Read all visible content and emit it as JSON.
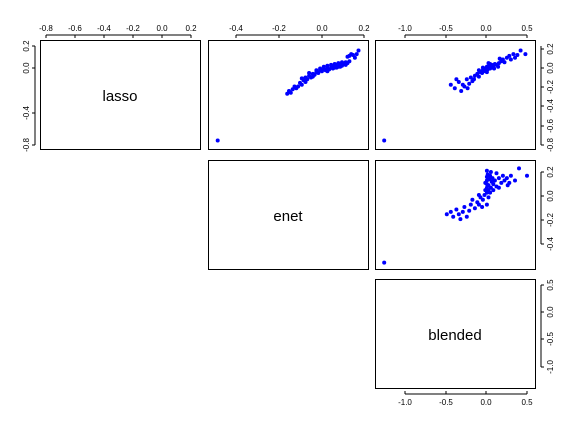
{
  "chart_data": {
    "type": "scatter",
    "layout": "pairs",
    "variables": [
      "lasso",
      "enet",
      "blended"
    ],
    "point_color": "#0000ff",
    "axes": {
      "lasso": {
        "range": [
          -0.85,
          0.25
        ],
        "ticks": [
          -0.8,
          -0.6,
          -0.4,
          -0.2,
          0.0,
          0.2
        ],
        "tick_labels": [
          "-0.8",
          "-0.6",
          "-0.4",
          "-0.2",
          "0.0",
          "0.2"
        ]
      },
      "enet": {
        "range": [
          -0.62,
          0.2
        ],
        "ticks": [
          -0.4,
          -0.2,
          0.0,
          0.2
        ],
        "tick_labels": [
          "-0.4",
          "-0.2",
          "0.0",
          "0.2"
        ]
      },
      "blended": {
        "range": [
          -1.32,
          0.55
        ],
        "ticks": [
          -1.0,
          -0.5,
          0.0,
          0.5
        ],
        "tick_labels": [
          "-1.0",
          "-0.5",
          "0.0",
          "0.5"
        ]
      }
    },
    "tick_label_rows": {
      "top_lasso": [
        "-0.8",
        "-0.6",
        "-0.4",
        "-0.2",
        "0.0",
        "0.2"
      ],
      "top_enet": [
        "-0.4",
        "-0.2",
        "0.0",
        "0.2"
      ],
      "top_blended": [
        "-1.0",
        "-0.5",
        "0.0",
        "0.5"
      ],
      "bottom_blended": [
        "-1.0",
        "-0.5",
        "0.0",
        "0.5"
      ]
    },
    "tick_label_cols": {
      "left_lasso": [
        "-0.8",
        "-0.4",
        "0.0",
        "0.2"
      ],
      "right_lasso": [
        "-0.8",
        "-0.6",
        "-0.4",
        "-0.2",
        "0.0",
        "0.2"
      ],
      "right_enet": [
        "-0.4",
        "-0.2",
        "0.0",
        "0.2"
      ],
      "right_blended": [
        "-1.0",
        "-0.5",
        "0.0",
        "0.5"
      ]
    },
    "panels": [
      {
        "x": "enet",
        "y": "lasso",
        "points": [
          [
            -0.6,
            -0.8
          ],
          [
            -0.22,
            -0.28
          ],
          [
            -0.21,
            -0.25
          ],
          [
            -0.2,
            -0.27
          ],
          [
            -0.19,
            -0.23
          ],
          [
            -0.18,
            -0.2
          ],
          [
            -0.17,
            -0.22
          ],
          [
            -0.16,
            -0.2
          ],
          [
            -0.15,
            -0.16
          ],
          [
            -0.14,
            -0.18
          ],
          [
            -0.13,
            -0.13
          ],
          [
            -0.12,
            -0.15
          ],
          [
            -0.12,
            -0.1
          ],
          [
            -0.11,
            -0.12
          ],
          [
            -0.1,
            -0.08
          ],
          [
            -0.09,
            -0.1
          ],
          [
            -0.08,
            -0.06
          ],
          [
            -0.07,
            -0.07
          ],
          [
            -0.06,
            -0.04
          ],
          [
            -0.05,
            -0.05
          ],
          [
            -0.04,
            -0.02
          ],
          [
            -0.03,
            -0.03
          ],
          [
            -0.02,
            -0.01
          ],
          [
            -0.01,
            -0.02
          ],
          [
            0.0,
            0.0
          ],
          [
            0.01,
            -0.01
          ],
          [
            0.02,
            0.01
          ],
          [
            0.03,
            0.0
          ],
          [
            0.03,
            0.02
          ],
          [
            0.04,
            0.01
          ],
          [
            0.05,
            0.03
          ],
          [
            0.05,
            0.01
          ],
          [
            0.06,
            0.02
          ],
          [
            0.07,
            0.04
          ],
          [
            0.07,
            0.02
          ],
          [
            0.08,
            0.03
          ],
          [
            0.09,
            0.05
          ],
          [
            0.1,
            0.04
          ],
          [
            0.1,
            0.07
          ],
          [
            0.11,
            0.06
          ],
          [
            0.12,
            0.08
          ],
          [
            0.12,
            0.14
          ],
          [
            0.13,
            0.16
          ],
          [
            0.14,
            0.15
          ],
          [
            0.15,
            0.12
          ],
          [
            0.16,
            0.16
          ],
          [
            0.11,
            0.13
          ],
          [
            0.17,
            0.2
          ],
          [
            -0.02,
            0.02
          ],
          [
            0.0,
            0.03
          ],
          [
            0.02,
            0.04
          ],
          [
            0.04,
            0.05
          ],
          [
            -0.04,
            0.0
          ],
          [
            -0.06,
            -0.02
          ],
          [
            0.06,
            0.06
          ],
          [
            0.08,
            0.07
          ],
          [
            -0.1,
            -0.05
          ],
          [
            -0.14,
            -0.11
          ],
          [
            -0.08,
            -0.09
          ],
          [
            0.0,
            -0.03
          ]
        ]
      },
      {
        "x": "blended",
        "y": "lasso",
        "points": [
          [
            -1.28,
            -0.8
          ],
          [
            -0.45,
            -0.18
          ],
          [
            -0.4,
            -0.22
          ],
          [
            -0.35,
            -0.15
          ],
          [
            -0.32,
            -0.25
          ],
          [
            -0.28,
            -0.2
          ],
          [
            -0.25,
            -0.12
          ],
          [
            -0.22,
            -0.17
          ],
          [
            -0.2,
            -0.1
          ],
          [
            -0.18,
            -0.14
          ],
          [
            -0.15,
            -0.08
          ],
          [
            -0.12,
            -0.06
          ],
          [
            -0.1,
            -0.09
          ],
          [
            -0.08,
            -0.04
          ],
          [
            -0.06,
            -0.05
          ],
          [
            -0.05,
            -0.02
          ],
          [
            -0.03,
            0.0
          ],
          [
            -0.02,
            -0.03
          ],
          [
            0.0,
            0.0
          ],
          [
            0.0,
            0.02
          ],
          [
            0.01,
            -0.01
          ],
          [
            0.02,
            0.01
          ],
          [
            0.03,
            0.03
          ],
          [
            0.04,
            0.0
          ],
          [
            0.05,
            0.02
          ],
          [
            0.06,
            0.04
          ],
          [
            0.07,
            0.01
          ],
          [
            0.08,
            0.03
          ],
          [
            0.1,
            0.05
          ],
          [
            0.12,
            0.04
          ],
          [
            0.15,
            0.06
          ],
          [
            0.18,
            0.08
          ],
          [
            0.2,
            0.1
          ],
          [
            0.22,
            0.07
          ],
          [
            0.25,
            0.12
          ],
          [
            0.28,
            0.14
          ],
          [
            0.3,
            0.1
          ],
          [
            0.33,
            0.16
          ],
          [
            0.38,
            0.15
          ],
          [
            0.42,
            0.2
          ],
          [
            0.48,
            0.16
          ],
          [
            0.35,
            0.12
          ],
          [
            -0.3,
            -0.18
          ],
          [
            -0.24,
            -0.22
          ],
          [
            -0.16,
            -0.12
          ],
          [
            -0.1,
            -0.02
          ],
          [
            0.0,
            -0.04
          ],
          [
            0.04,
            0.05
          ],
          [
            0.14,
            0.02
          ],
          [
            -0.05,
            0.01
          ],
          [
            0.09,
            0.0
          ],
          [
            0.16,
            0.11
          ],
          [
            -0.38,
            -0.12
          ],
          [
            0.02,
            0.06
          ]
        ]
      },
      {
        "x": "blended",
        "y": "enet",
        "points": [
          [
            -1.28,
            -0.6
          ],
          [
            -0.5,
            -0.2
          ],
          [
            -0.45,
            -0.18
          ],
          [
            -0.42,
            -0.22
          ],
          [
            -0.38,
            -0.16
          ],
          [
            -0.35,
            -0.2
          ],
          [
            -0.33,
            -0.24
          ],
          [
            -0.3,
            -0.18
          ],
          [
            -0.28,
            -0.14
          ],
          [
            -0.25,
            -0.22
          ],
          [
            -0.22,
            -0.17
          ],
          [
            -0.2,
            -0.12
          ],
          [
            -0.15,
            -0.15
          ],
          [
            -0.12,
            -0.1
          ],
          [
            -0.1,
            -0.12
          ],
          [
            -0.08,
            -0.06
          ],
          [
            -0.05,
            -0.08
          ],
          [
            -0.03,
            -0.04
          ],
          [
            -0.02,
            0.0
          ],
          [
            0.0,
            -0.02
          ],
          [
            0.0,
            0.02
          ],
          [
            0.0,
            0.05
          ],
          [
            0.0,
            0.08
          ],
          [
            0.0,
            0.11
          ],
          [
            0.01,
            0.13
          ],
          [
            0.02,
            -0.06
          ],
          [
            0.02,
            0.04
          ],
          [
            0.03,
            0.09
          ],
          [
            0.04,
            0.12
          ],
          [
            0.05,
            0.02
          ],
          [
            0.06,
            0.07
          ],
          [
            0.07,
            0.1
          ],
          [
            0.08,
            0.05
          ],
          [
            0.1,
            0.08
          ],
          [
            0.12,
            0.03
          ],
          [
            0.15,
            0.1
          ],
          [
            0.18,
            0.06
          ],
          [
            0.2,
            0.12
          ],
          [
            0.22,
            0.08
          ],
          [
            0.25,
            0.1
          ],
          [
            0.28,
            0.06
          ],
          [
            0.3,
            0.12
          ],
          [
            0.35,
            0.08
          ],
          [
            0.4,
            0.18
          ],
          [
            0.5,
            0.12
          ],
          [
            -0.06,
            -0.14
          ],
          [
            0.0,
            -0.12
          ],
          [
            0.02,
            0.0
          ],
          [
            -0.1,
            -0.04
          ],
          [
            0.04,
            -0.02
          ],
          [
            0.12,
            0.14
          ],
          [
            0.26,
            0.04
          ],
          [
            -0.18,
            -0.08
          ],
          [
            0.08,
            0.0
          ],
          [
            0.0,
            0.16
          ],
          [
            0.05,
            0.15
          ],
          [
            -0.02,
            0.06
          ],
          [
            0.15,
            0.02
          ]
        ]
      }
    ]
  }
}
